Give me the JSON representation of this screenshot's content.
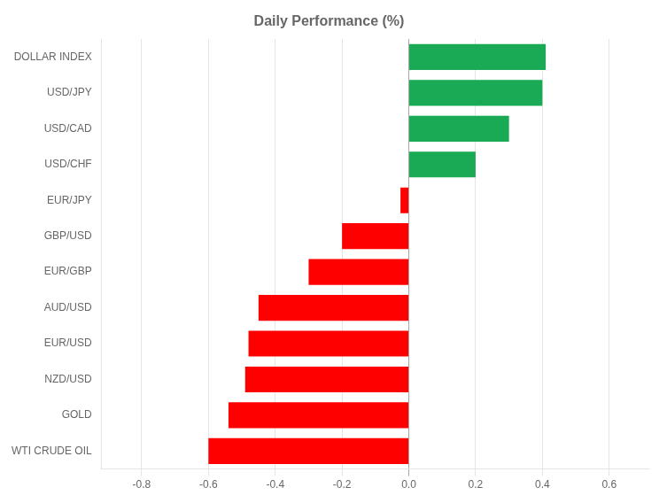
{
  "chart_data": {
    "type": "bar",
    "orientation": "horizontal",
    "title": "Daily Performance (%)",
    "categories": [
      "WTI CRUDE OIL",
      "GOLD",
      "NZD/USD",
      "EUR/USD",
      "AUD/USD",
      "EUR/GBP",
      "GBP/USD",
      "EUR/JPY",
      "USD/CHF",
      "USD/CAD",
      "USD/JPY",
      "DOLLAR INDEX"
    ],
    "values": [
      -0.6,
      -0.54,
      -0.49,
      -0.48,
      -0.45,
      -0.3,
      -0.2,
      -0.025,
      0.2,
      0.3,
      0.4,
      0.41
    ],
    "colors": [
      "#ff0000",
      "#ff0000",
      "#ff0000",
      "#ff0000",
      "#ff0000",
      "#ff0000",
      "#ff0000",
      "#ff0000",
      "#1aaa55",
      "#1aaa55",
      "#1aaa55",
      "#1aaa55"
    ],
    "xlim": [
      -0.92,
      0.72
    ],
    "xticks": [
      -0.8,
      -0.6,
      -0.4,
      -0.2,
      {
        "value": 0,
        "label": "0.0"
      },
      0.2,
      0.4,
      0.6
    ],
    "grid": true
  }
}
